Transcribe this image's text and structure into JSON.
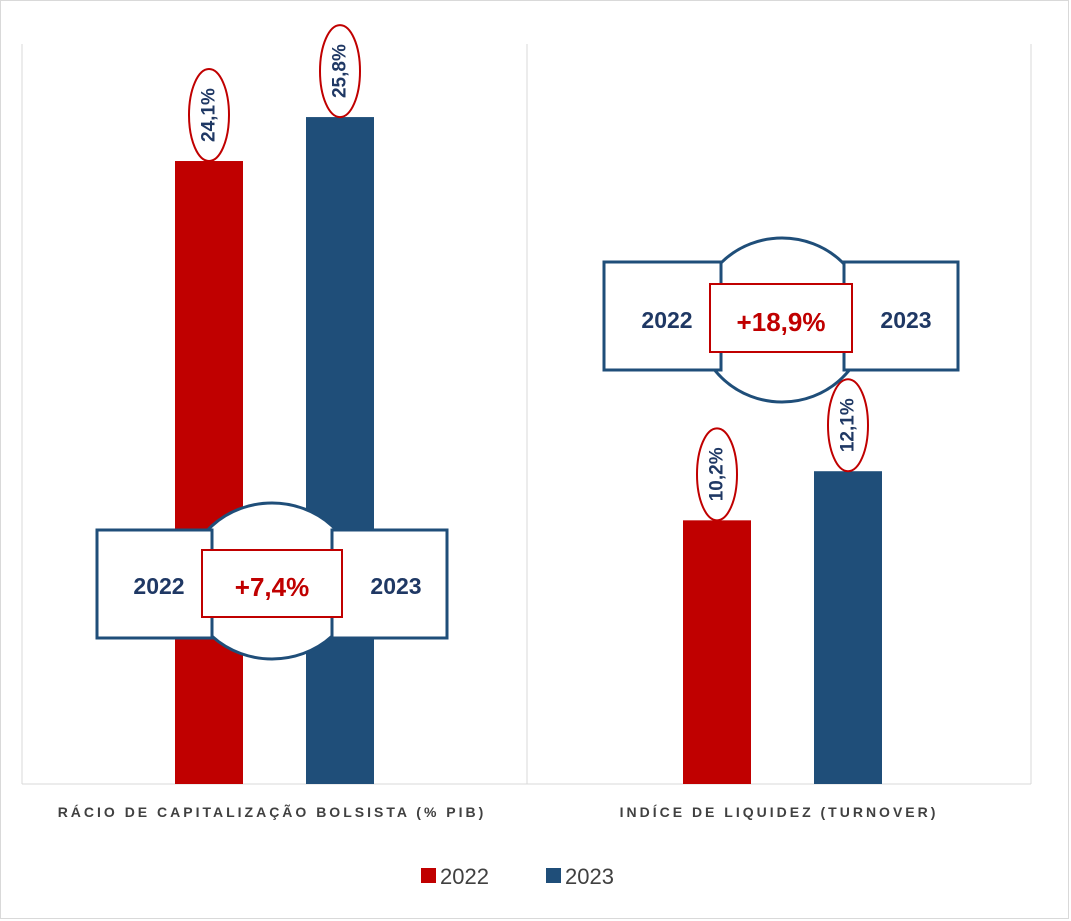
{
  "chart_data": {
    "type": "bar",
    "categories": [
      "RÁCIO DE CAPITALIZAÇÃO BOLSISTA (% PIB)",
      "INDÍCE DE LIQUIDEZ (TURNOVER)"
    ],
    "series": [
      {
        "name": "2022",
        "values": [
          24.1,
          10.2
        ],
        "labels": [
          "24,1%",
          "10,2%"
        ],
        "color": "#c00000"
      },
      {
        "name": "2023",
        "values": [
          25.8,
          12.1
        ],
        "labels": [
          "25,8%",
          "12,1%"
        ],
        "color": "#1f4e79"
      }
    ],
    "ylim": [
      0,
      30
    ],
    "legend": "bottom",
    "grid": false,
    "comparisons": [
      {
        "from": "2022",
        "change": "+7,4%",
        "to": "2023"
      },
      {
        "from": "2022",
        "change": "+18,9%",
        "to": "2023"
      }
    ]
  },
  "colors": {
    "red": "#c00000",
    "navy": "#1f4e79",
    "text_navy": "#1f3864",
    "axis": "#d9d9d9"
  }
}
